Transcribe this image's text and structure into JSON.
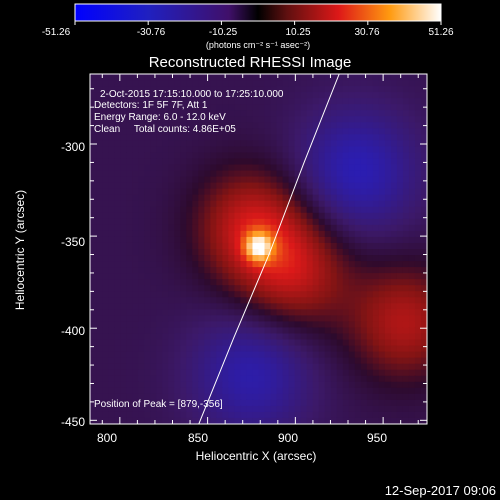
{
  "colorbar": {
    "ticks": [
      "-51.26",
      "-30.76",
      "-10.25",
      "10.25",
      "30.76",
      "51.26"
    ],
    "unit_label": "(photons cm⁻² s⁻¹ asec⁻²)",
    "min": -51.26,
    "max": 51.26
  },
  "chart_data": {
    "type": "heatmap",
    "title": "Reconstructed RHESSI Image",
    "xlabel": "Heliocentric X (arcsec)",
    "ylabel": "Heliocentric Y (arcsec)",
    "xlim": [
      783,
      975
    ],
    "ylim": [
      -452,
      -262
    ],
    "xticks": [
      800,
      850,
      900,
      950
    ],
    "yticks": [
      -300,
      -350,
      -400,
      -450
    ],
    "annotations": [
      "2-Oct-2015 17:15:10.000 to 17:25:10.000",
      "Detectors: 1F 5F 7F, Att 1",
      "Energy Range: 6.0 - 12.0 keV",
      "Clean     Total counts: 4.86E+05"
    ],
    "peak_label": "Position of Peak = [879,-356]",
    "peak": {
      "x": 879,
      "y": -356,
      "value": 51.26
    },
    "features": [
      {
        "kind": "positive",
        "x": 875,
        "y": -345,
        "peak_value": 25
      },
      {
        "kind": "positive",
        "x": 900,
        "y": -370,
        "peak_value": 22
      },
      {
        "kind": "positive",
        "x": 962,
        "y": -397,
        "peak_value": 22
      },
      {
        "kind": "negative",
        "x": 935,
        "y": -315,
        "peak_value": -20
      },
      {
        "kind": "negative",
        "x": 875,
        "y": -425,
        "peak_value": -18
      }
    ],
    "limb_points": [
      [
        925,
        -262
      ],
      [
        905,
        -310
      ],
      [
        885,
        -360
      ],
      [
        865,
        -405
      ],
      [
        845,
        -452
      ]
    ]
  },
  "footer": {
    "timestamp": "12-Sep-2017 09:06"
  }
}
